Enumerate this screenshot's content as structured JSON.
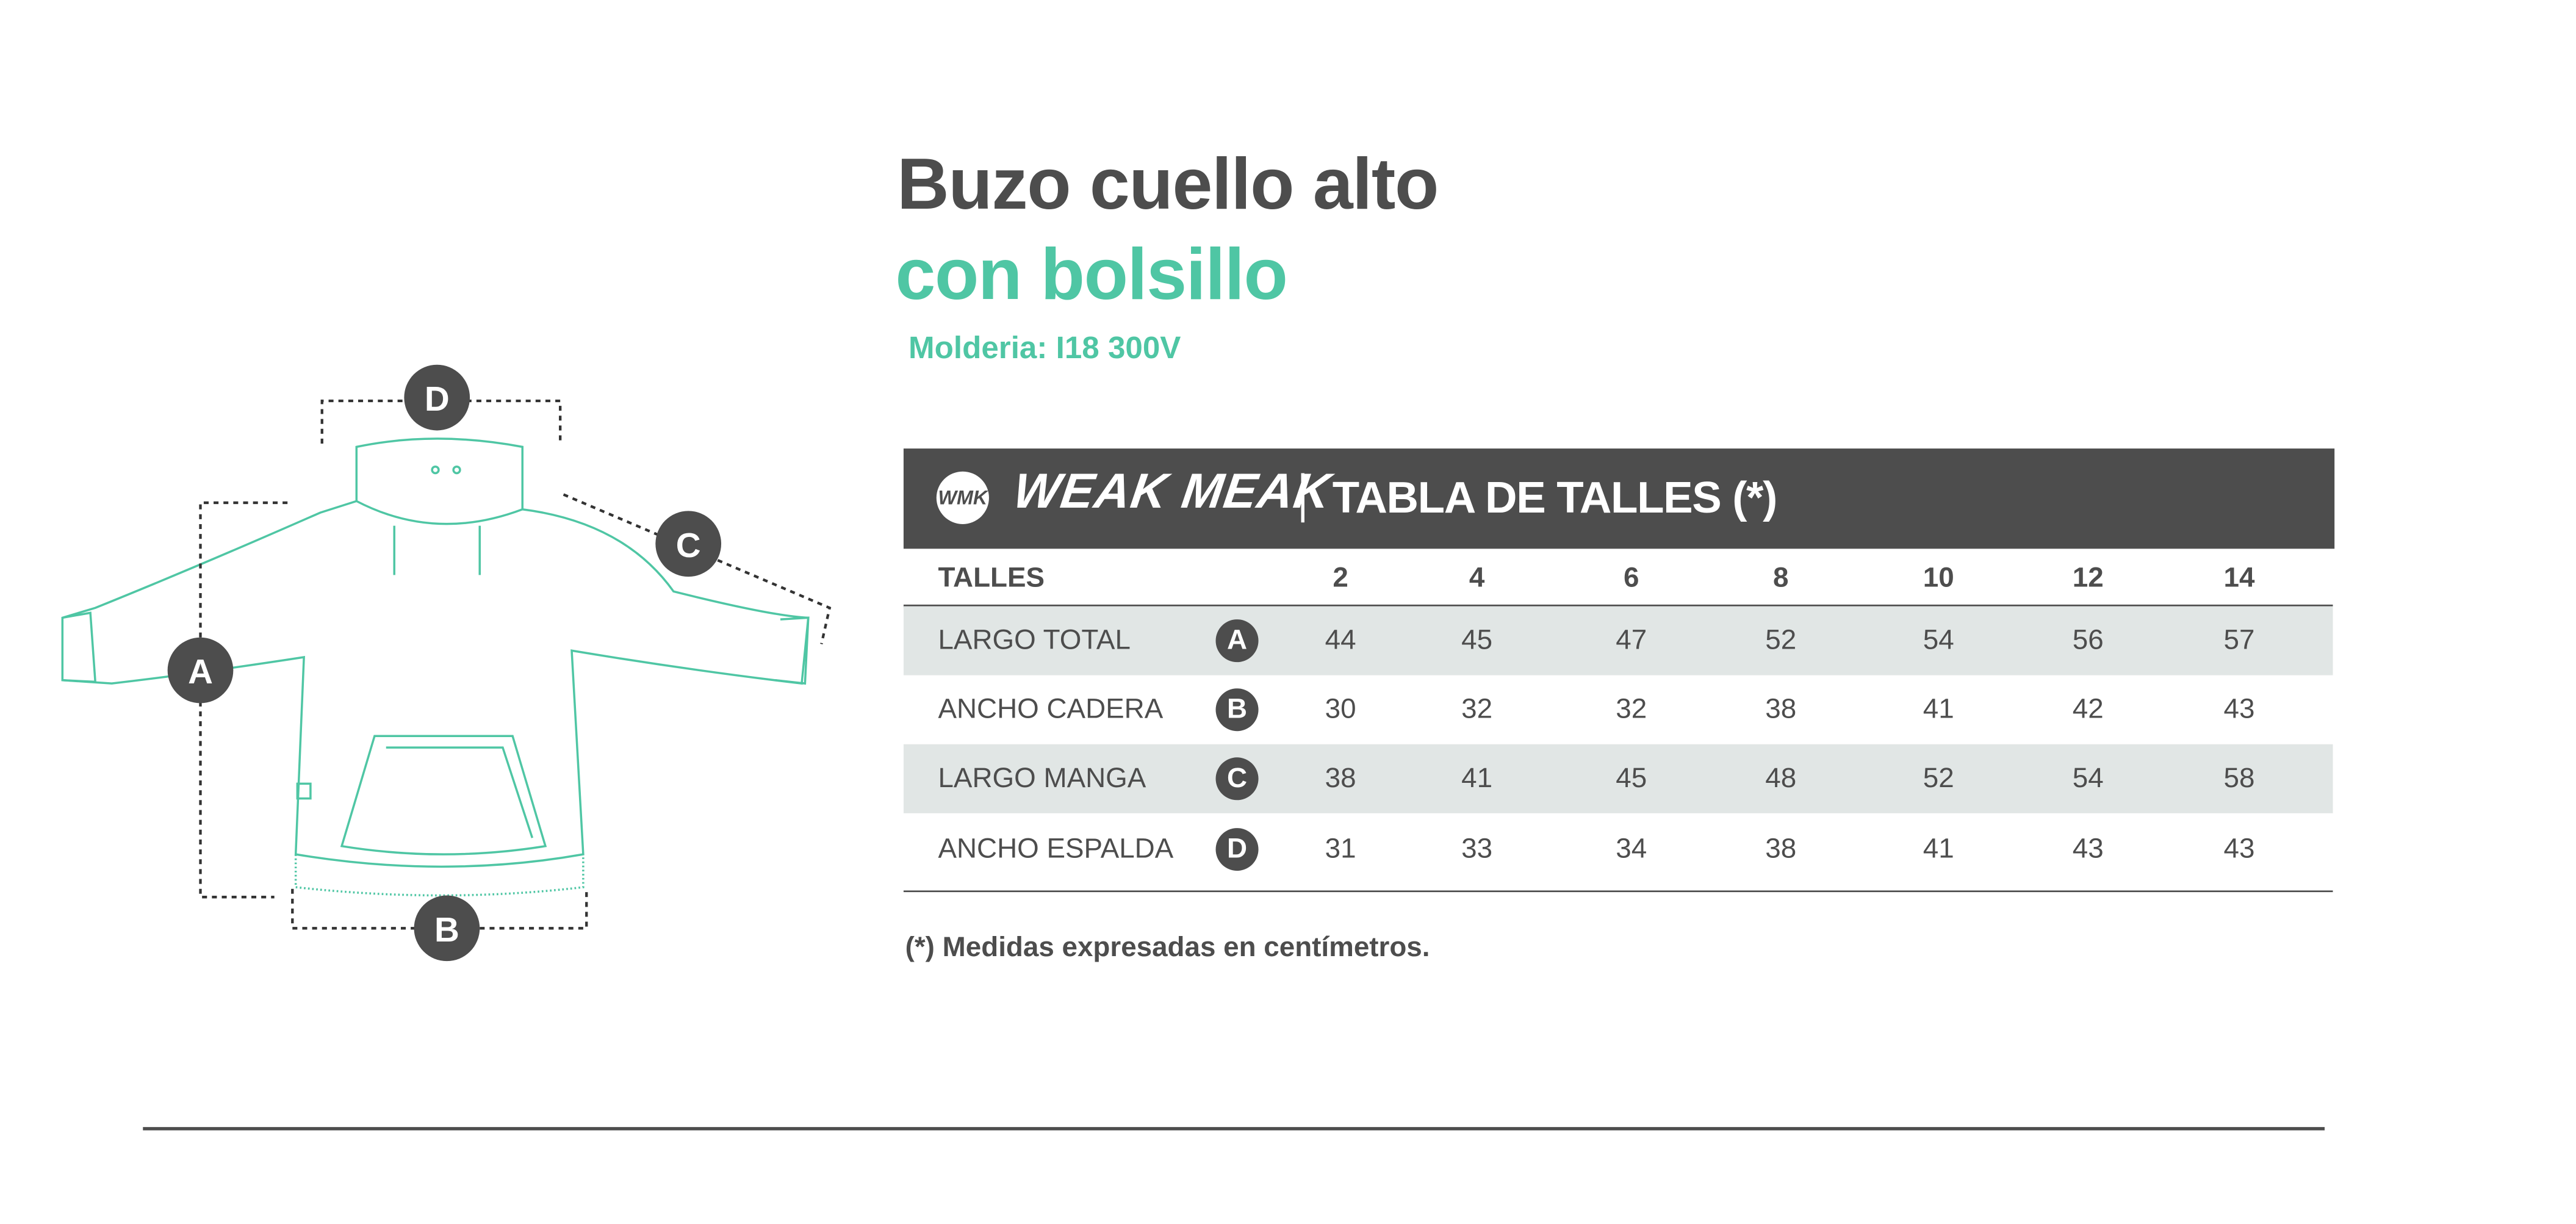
{
  "title_line1": "Buzo cuello alto",
  "title_line2": "con bolsillo",
  "subtitle": "Molderia: I18 300V",
  "brand": {
    "logo_text": "WMK",
    "name": "WEAK MEAK"
  },
  "table": {
    "title": "TABLA DE TALLES (*)",
    "header_label": "TALLES",
    "sizes": [
      "2",
      "4",
      "6",
      "8",
      "10",
      "12",
      "14"
    ],
    "rows": [
      {
        "label": "LARGO TOTAL",
        "badge": "A",
        "values": [
          "44",
          "45",
          "47",
          "52",
          "54",
          "56",
          "57"
        ]
      },
      {
        "label": "ANCHO CADERA",
        "badge": "B",
        "values": [
          "30",
          "32",
          "32",
          "38",
          "41",
          "42",
          "43"
        ]
      },
      {
        "label": "LARGO MANGA",
        "badge": "C",
        "values": [
          "38",
          "41",
          "45",
          "48",
          "52",
          "54",
          "58"
        ]
      },
      {
        "label": "ANCHO ESPALDA",
        "badge": "D",
        "values": [
          "31",
          "33",
          "34",
          "38",
          "41",
          "43",
          "43"
        ]
      }
    ]
  },
  "footnote": "(*) Medidas expresadas en centímetros.",
  "diagram_labels": {
    "a": "A",
    "b": "B",
    "c": "C",
    "d": "D"
  },
  "colors": {
    "dark": "#4d4d4d",
    "accent": "#4fc6a4",
    "row_stripe": "#e1e6e5"
  }
}
